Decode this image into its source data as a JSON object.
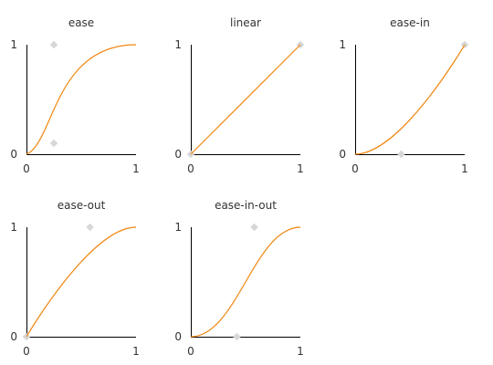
{
  "style": {
    "curve_color": "#f0860f",
    "control_point_color": "#d7d7d7",
    "axis_color": "#000000"
  },
  "chart_data": [
    {
      "type": "line",
      "title": "ease",
      "control_points": [
        [
          0.25,
          0.1
        ],
        [
          0.25,
          1.0
        ]
      ],
      "xlim": [
        0,
        1
      ],
      "ylim": [
        0,
        1
      ],
      "xticks": [
        "0",
        "1"
      ],
      "yticks": [
        "0",
        "1"
      ]
    },
    {
      "type": "line",
      "title": "linear",
      "control_points": [
        [
          0.0,
          0.0
        ],
        [
          1.0,
          1.0
        ]
      ],
      "xlim": [
        0,
        1
      ],
      "ylim": [
        0,
        1
      ],
      "xticks": [
        "0",
        "1"
      ],
      "yticks": [
        "0",
        "1"
      ]
    },
    {
      "type": "line",
      "title": "ease-in",
      "control_points": [
        [
          0.42,
          0.0
        ],
        [
          1.0,
          1.0
        ]
      ],
      "xlim": [
        0,
        1
      ],
      "ylim": [
        0,
        1
      ],
      "xticks": [
        "0",
        "1"
      ],
      "yticks": [
        "0",
        "1"
      ]
    },
    {
      "type": "line",
      "title": "ease-out",
      "control_points": [
        [
          0.0,
          0.0
        ],
        [
          0.58,
          1.0
        ]
      ],
      "xlim": [
        0,
        1
      ],
      "ylim": [
        0,
        1
      ],
      "xticks": [
        "0",
        "1"
      ],
      "yticks": [
        "0",
        "1"
      ]
    },
    {
      "type": "line",
      "title": "ease-in-out",
      "control_points": [
        [
          0.42,
          0.0
        ],
        [
          0.58,
          1.0
        ]
      ],
      "xlim": [
        0,
        1
      ],
      "ylim": [
        0,
        1
      ],
      "xticks": [
        "0",
        "1"
      ],
      "yticks": [
        "0",
        "1"
      ]
    }
  ]
}
